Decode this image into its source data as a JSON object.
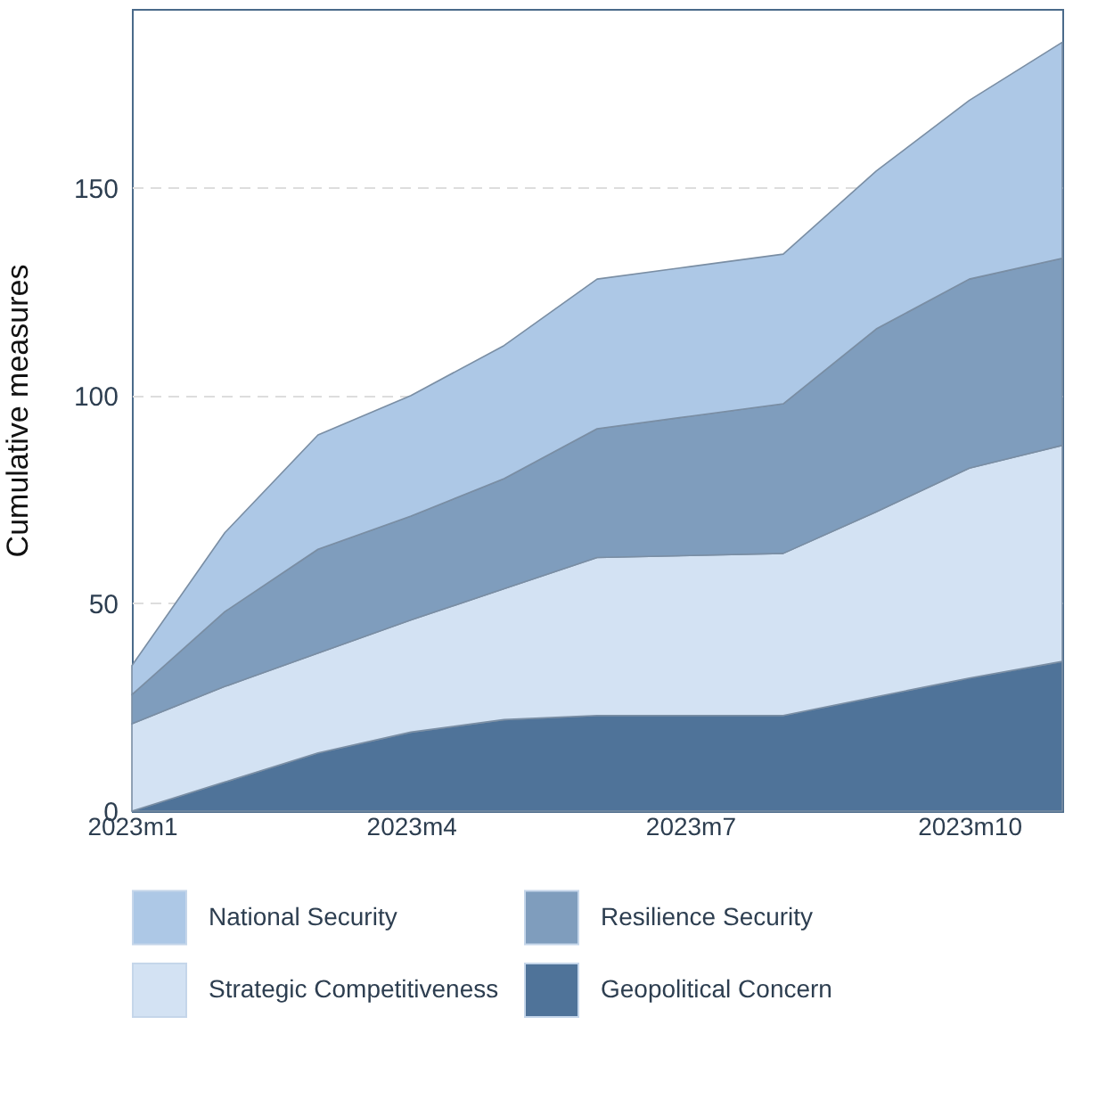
{
  "chart_data": {
    "type": "area",
    "ylabel": "Cumulative measures",
    "stacked": true,
    "categories": [
      "2023m1",
      null,
      null,
      "2023m4",
      null,
      null,
      "2023m7",
      null,
      null,
      "2023m10",
      null
    ],
    "ylim": [
      0,
      193
    ],
    "yticks": [
      0,
      50,
      100,
      150
    ],
    "series": [
      {
        "name": "Geopolitical Concern",
        "color": "#4f7399",
        "values": [
          0,
          7,
          14,
          19,
          22,
          23,
          23,
          23,
          27.5,
          32,
          36
        ]
      },
      {
        "name": "Strategic Competitiveness",
        "color": "#d3e2f3",
        "values": [
          21,
          23,
          24,
          27,
          31.5,
          38,
          38.5,
          39,
          44.5,
          50.5,
          52
        ]
      },
      {
        "name": "Resilience Security",
        "color": "#7f9dbd",
        "values": [
          7,
          18,
          25,
          25,
          26.5,
          31,
          33.5,
          36,
          44,
          45.5,
          45
        ]
      },
      {
        "name": "National Security",
        "color": "#adc8e6",
        "values": [
          7,
          19,
          27.5,
          29,
          32,
          36,
          36,
          36,
          38,
          43,
          52
        ]
      }
    ],
    "grid": "y",
    "legend": "bottom"
  }
}
